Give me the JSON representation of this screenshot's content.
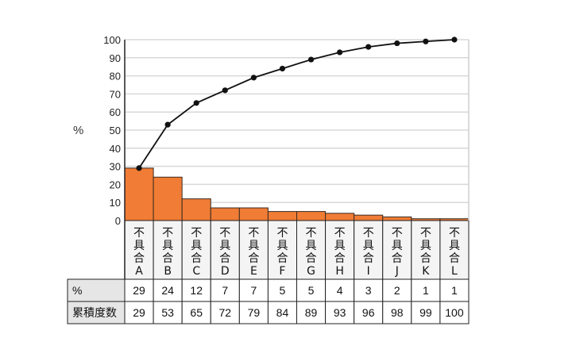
{
  "chart_data": {
    "type": "bar",
    "title": "",
    "xlabel": "",
    "ylabel": "%",
    "ylim": [
      0,
      100
    ],
    "yticks": [
      0,
      10,
      20,
      30,
      40,
      50,
      60,
      70,
      80,
      90,
      100
    ],
    "grid": true,
    "legend": null,
    "categories": [
      "不具合A",
      "不具合B",
      "不具合C",
      "不具合D",
      "不具合E",
      "不具合F",
      "不具合G",
      "不具合H",
      "不具合I",
      "不具合J",
      "不具合K",
      "不具合L"
    ],
    "category_prefix": "不具合",
    "category_suffixes": [
      "A",
      "B",
      "C",
      "D",
      "E",
      "F",
      "G",
      "H",
      "I",
      "J",
      "K",
      "L"
    ],
    "series": [
      {
        "name": "%",
        "type": "bar",
        "color": "#f07c35",
        "values": [
          29,
          24,
          12,
          7,
          7,
          5,
          5,
          4,
          3,
          2,
          1,
          1
        ]
      },
      {
        "name": "累積度数",
        "type": "line",
        "color": "#111111",
        "values": [
          29,
          53,
          65,
          72,
          79,
          84,
          89,
          93,
          96,
          98,
          99,
          100
        ]
      }
    ]
  },
  "table": {
    "row_labels": [
      "%",
      "累積度数"
    ],
    "percent": [
      29,
      24,
      12,
      7,
      7,
      5,
      5,
      4,
      3,
      2,
      1,
      1
    ],
    "cumulative": [
      29,
      53,
      65,
      72,
      79,
      84,
      89,
      93,
      96,
      98,
      99,
      100
    ]
  },
  "colors": {
    "bar_fill": "#f07c35",
    "bar_stroke": "#3a2a20",
    "grid": "#d8d8d8",
    "table_label_bg": "#e6e6e6",
    "category_bg": "#f4f4f4"
  }
}
